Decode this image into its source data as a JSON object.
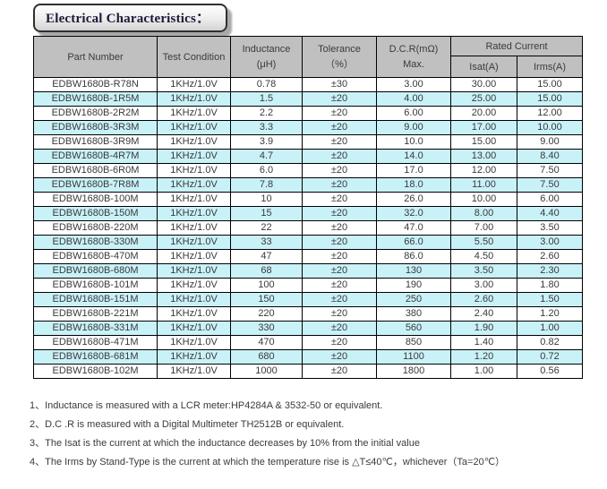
{
  "title": "Electrical Characteristics：",
  "table": {
    "headers": {
      "part_number": "Part Number",
      "test_condition": "Test Condition",
      "inductance_l1": "Inductance",
      "inductance_l2": "(μH)",
      "tolerance_l1": "Tolerance",
      "tolerance_l2": "（%）",
      "dcr_l1": "D.C.R(mΩ)",
      "dcr_l2": "Max.",
      "rated_current": "Rated Current",
      "isat": "Isat(A)",
      "irms": "Irms(A)"
    },
    "rows": [
      [
        "EDBW1680B-R78N",
        "1KHz/1.0V",
        "0.78",
        "±30",
        "3.00",
        "30.00",
        "15.00"
      ],
      [
        "EDBW1680B-1R5M",
        "1KHz/1.0V",
        "1.5",
        "±20",
        "4.00",
        "25.00",
        "15.00"
      ],
      [
        "EDBW1680B-2R2M",
        "1KHz/1.0V",
        "2.2",
        "±20",
        "6.00",
        "20.00",
        "12.00"
      ],
      [
        "EDBW1680B-3R3M",
        "1KHz/1.0V",
        "3.3",
        "±20",
        "9.00",
        "17.00",
        "10.00"
      ],
      [
        "EDBW1680B-3R9M",
        "1KHz/1.0V",
        "3.9",
        "±20",
        "10.0",
        "15.00",
        "9.00"
      ],
      [
        "EDBW1680B-4R7M",
        "1KHz/1.0V",
        "4.7",
        "±20",
        "14.0",
        "13.00",
        "8.40"
      ],
      [
        "EDBW1680B-6R0M",
        "1KHz/1.0V",
        "6.0",
        "±20",
        "17.0",
        "12.00",
        "7.50"
      ],
      [
        "EDBW1680B-7R8M",
        "1KHz/1.0V",
        "7.8",
        "±20",
        "18.0",
        "11.00",
        "7.50"
      ],
      [
        "EDBW1680B-100M",
        "1KHz/1.0V",
        "10",
        "±20",
        "26.0",
        "10.00",
        "6.00"
      ],
      [
        "EDBW1680B-150M",
        "1KHz/1.0V",
        "15",
        "±20",
        "32.0",
        "8.00",
        "4.40"
      ],
      [
        "EDBW1680B-220M",
        "1KHz/1.0V",
        "22",
        "±20",
        "47.0",
        "7.00",
        "3.50"
      ],
      [
        "EDBW1680B-330M",
        "1KHz/1.0V",
        "33",
        "±20",
        "66.0",
        "5.50",
        "3.00"
      ],
      [
        "EDBW1680B-470M",
        "1KHz/1.0V",
        "47",
        "±20",
        "86.0",
        "4.50",
        "2.60"
      ],
      [
        "EDBW1680B-680M",
        "1KHz/1.0V",
        "68",
        "±20",
        "130",
        "3.50",
        "2.30"
      ],
      [
        "EDBW1680B-101M",
        "1KHz/1.0V",
        "100",
        "±20",
        "190",
        "3.00",
        "1.80"
      ],
      [
        "EDBW1680B-151M",
        "1KHz/1.0V",
        "150",
        "±20",
        "250",
        "2.60",
        "1.50"
      ],
      [
        "EDBW1680B-221M",
        "1KHz/1.0V",
        "220",
        "±20",
        "380",
        "2.40",
        "1.20"
      ],
      [
        "EDBW1680B-331M",
        "1KHz/1.0V",
        "330",
        "±20",
        "560",
        "1.90",
        "1.00"
      ],
      [
        "EDBW1680B-471M",
        "1KHz/1.0V",
        "470",
        "±20",
        "850",
        "1.40",
        "0.82"
      ],
      [
        "EDBW1680B-681M",
        "1KHz/1.0V",
        "680",
        "±20",
        "1100",
        "1.20",
        "0.72"
      ],
      [
        "EDBW1680B-102M",
        "1KHz/1.0V",
        "1000",
        "±20",
        "1800",
        "1.00",
        "0.56"
      ]
    ]
  },
  "notes": [
    "1、Inductance is measured with a LCR meter:HP4284A & 3532-50 or equivalent.",
    "2、D.C .R is measured with a Digital Multimeter TH2512B or equivalent.",
    "3、The Isat is the current at which the inductance decreases by 10% from the initial value",
    "4、The Irms by Stand-Type is the current at which the temperature rise is △T≤40℃，whichever（Ta=20℃）"
  ],
  "colors": {
    "header_bg": "#c0c0c0",
    "alt_row_bg": "#c9f1f8",
    "border": "#000000",
    "text": "#3a3a3a",
    "title_text": "#191938"
  }
}
